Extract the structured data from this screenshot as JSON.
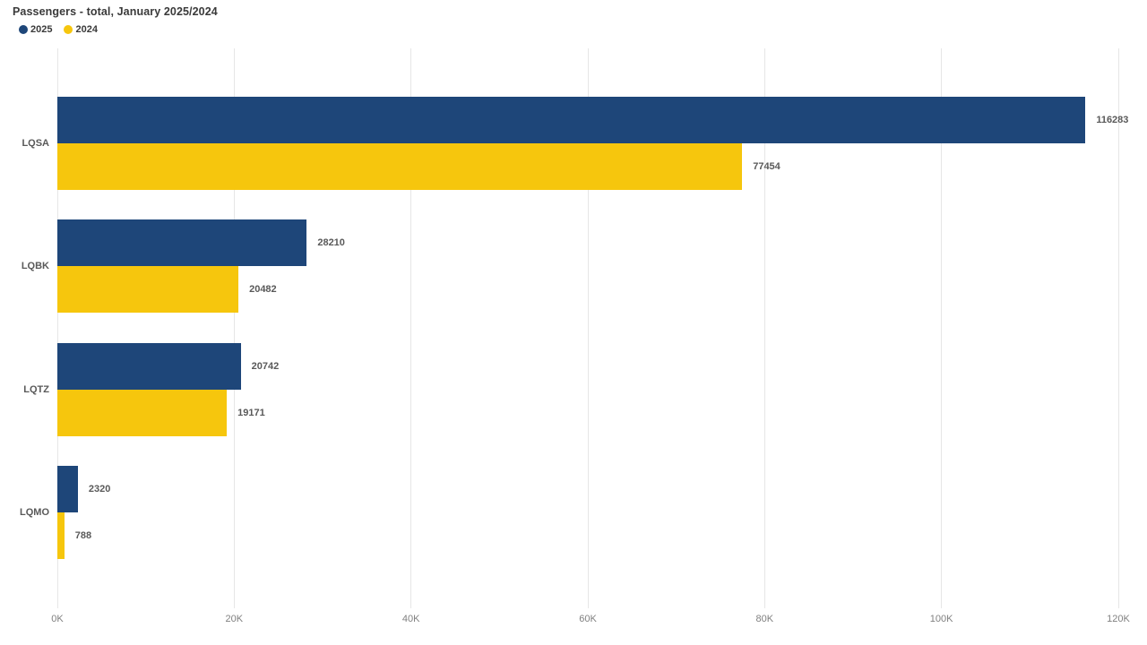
{
  "chart": {
    "title": "Passengers - total, January 2025/2024"
  },
  "chart_data": {
    "type": "bar",
    "orientation": "horizontal",
    "title": "Passengers - total, January 2025/2024",
    "categories": [
      "LQSA",
      "LQBK",
      "LQTZ",
      "LQMO"
    ],
    "series": [
      {
        "name": "2025",
        "color": "#1e4679",
        "values": [
          116283,
          28210,
          20742,
          2320
        ]
      },
      {
        "name": "2024",
        "color": "#f6c60d",
        "values": [
          77454,
          20482,
          19171,
          788
        ]
      }
    ],
    "xlabel": "",
    "ylabel": "",
    "xlim": [
      0,
      120000
    ],
    "x_ticks": [
      0,
      20000,
      40000,
      60000,
      80000,
      100000,
      120000
    ],
    "x_tick_labels": [
      "0K",
      "20K",
      "40K",
      "60K",
      "80K",
      "100K",
      "120K"
    ],
    "grid": "vertical",
    "legend_position": "top-left",
    "value_labels": true
  },
  "colors": {
    "series_2025": "#1e4679",
    "series_2024": "#f6c60d",
    "gridline": "#e6e6e6",
    "title_text": "#3a3a3a",
    "label_text": "#595959",
    "axis_text": "#808080",
    "background": "#ffffff"
  }
}
